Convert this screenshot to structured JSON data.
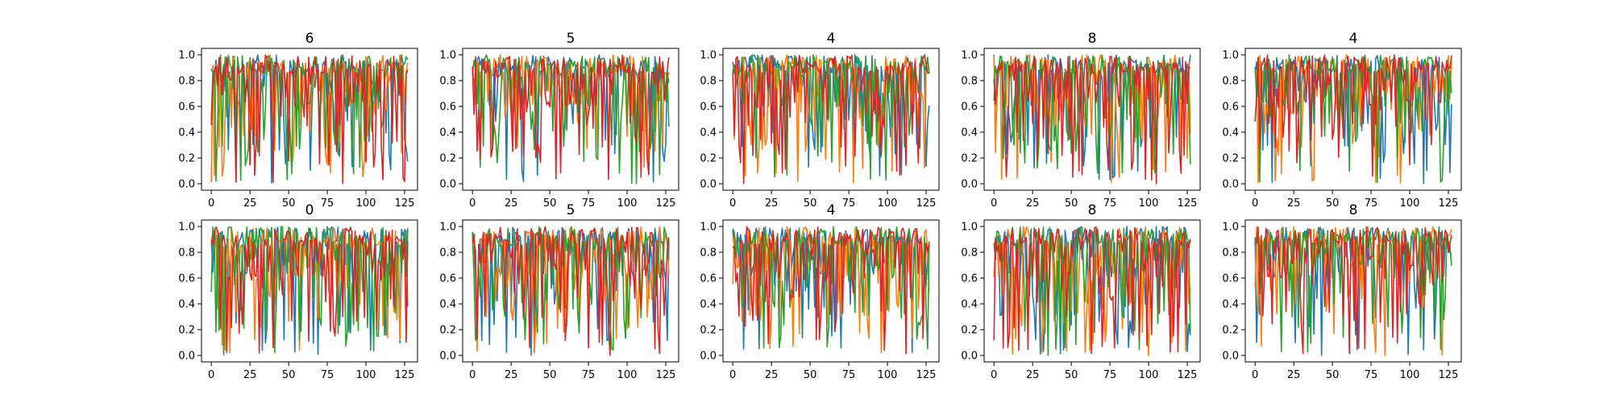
{
  "figure": {
    "panels": [
      {
        "title": "6",
        "seed": 11
      },
      {
        "title": "5",
        "seed": 23
      },
      {
        "title": "4",
        "seed": 37
      },
      {
        "title": "8",
        "seed": 41
      },
      {
        "title": "4",
        "seed": 53
      },
      {
        "title": "0",
        "seed": 67
      },
      {
        "title": "5",
        "seed": 71
      },
      {
        "title": "4",
        "seed": 83
      },
      {
        "title": "8",
        "seed": 97
      },
      {
        "title": "8",
        "seed": 101
      }
    ]
  },
  "chart_data": {
    "type": "line",
    "layout": "grid 2 rows x 5 columns",
    "panel_titles": [
      "6",
      "5",
      "4",
      "8",
      "4",
      "0",
      "5",
      "4",
      "8",
      "8"
    ],
    "series_colors": [
      "#1f77b4",
      "#ff7f0e",
      "#2ca02c",
      "#d62728"
    ],
    "x_points": 128,
    "xlim": [
      -6.35,
      133.35
    ],
    "ylim": [
      -0.05,
      1.05
    ],
    "xticks": [
      0,
      25,
      50,
      75,
      100,
      125
    ],
    "yticks": [
      0.0,
      0.2,
      0.4,
      0.6,
      0.8,
      1.0
    ],
    "xtick_labels": [
      "0",
      "25",
      "50",
      "75",
      "100",
      "125"
    ],
    "ytick_labels": [
      "0.0",
      "0.2",
      "0.4",
      "0.6",
      "0.8",
      "1.0"
    ],
    "grid": false,
    "legend": "none",
    "value_profile": "each series holds 128 dense values mostly between 0.6 and 1.0 with frequent sharp dips toward 0.0"
  }
}
